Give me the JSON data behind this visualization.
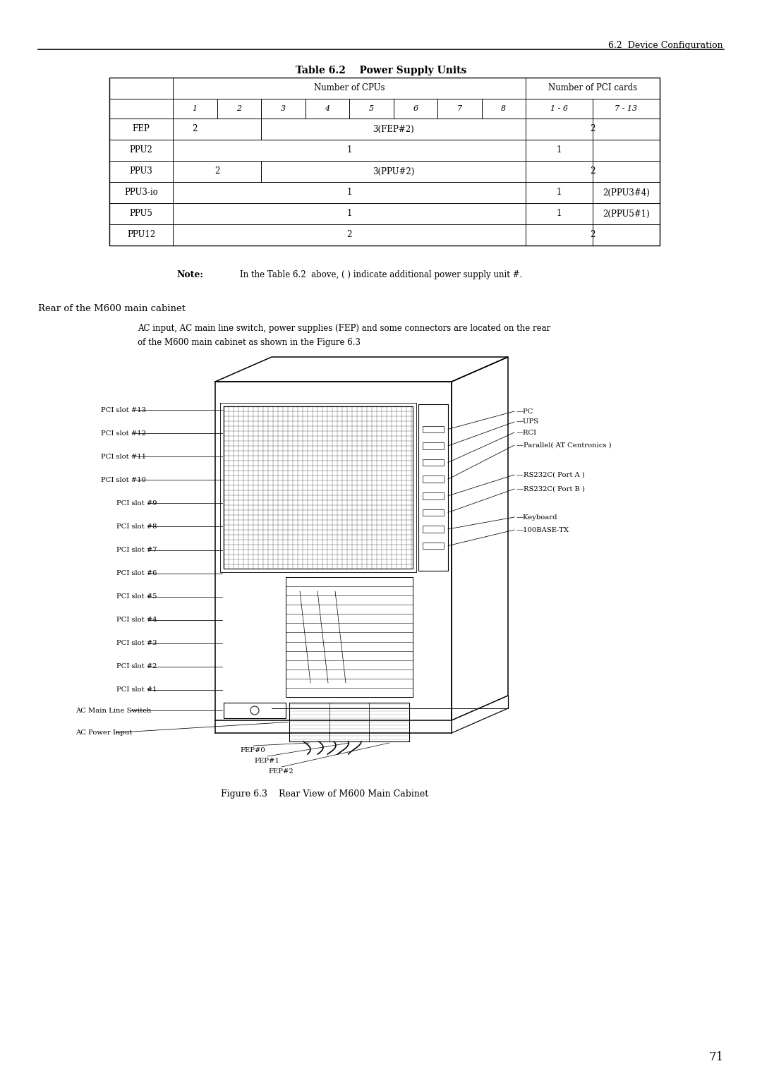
{
  "page_header": "6.2  Device Configuration",
  "table_title": "Table 6.2    Power Supply Units",
  "note_label": "Note:",
  "note_text": "In the Table 6.2  above, ( ) indicate additional power supply unit #.",
  "section_heading": "Rear of the M600 main cabinet",
  "body_text_line1": "AC input, AC main line switch, power supplies (FEP) and some connectors are located on the rear",
  "body_text_line2": "of the M600 main cabinet as shown in the Figure 6.3",
  "figure_caption": "Figure 6.3    Rear View of M600 Main Cabinet",
  "page_number": "71",
  "left_labels": [
    "PCI slot #13",
    "PCI slot #12",
    "PCI slot #11",
    "PCI slot #10",
    "PCI slot #9",
    "PCI slot #8",
    "PCI slot #7",
    "PCI slot #6",
    "PCI slot #5",
    "PCI slot #4",
    "PCI slot #3",
    "PCI slot #2",
    "PCI slot #1",
    "AC Main Line Switch",
    "AC Power Input"
  ],
  "right_labels": [
    "PC",
    "UPS",
    "RCI",
    "Parallel( AT Centronics )",
    "RS232C( Port A )",
    "RS232C( Port B )",
    "Keyboard",
    "100BASE-TX"
  ],
  "bottom_labels": [
    "FEP#0",
    "FEP#1",
    "FEP#2"
  ],
  "bg_color": "#ffffff",
  "text_color": "#000000"
}
